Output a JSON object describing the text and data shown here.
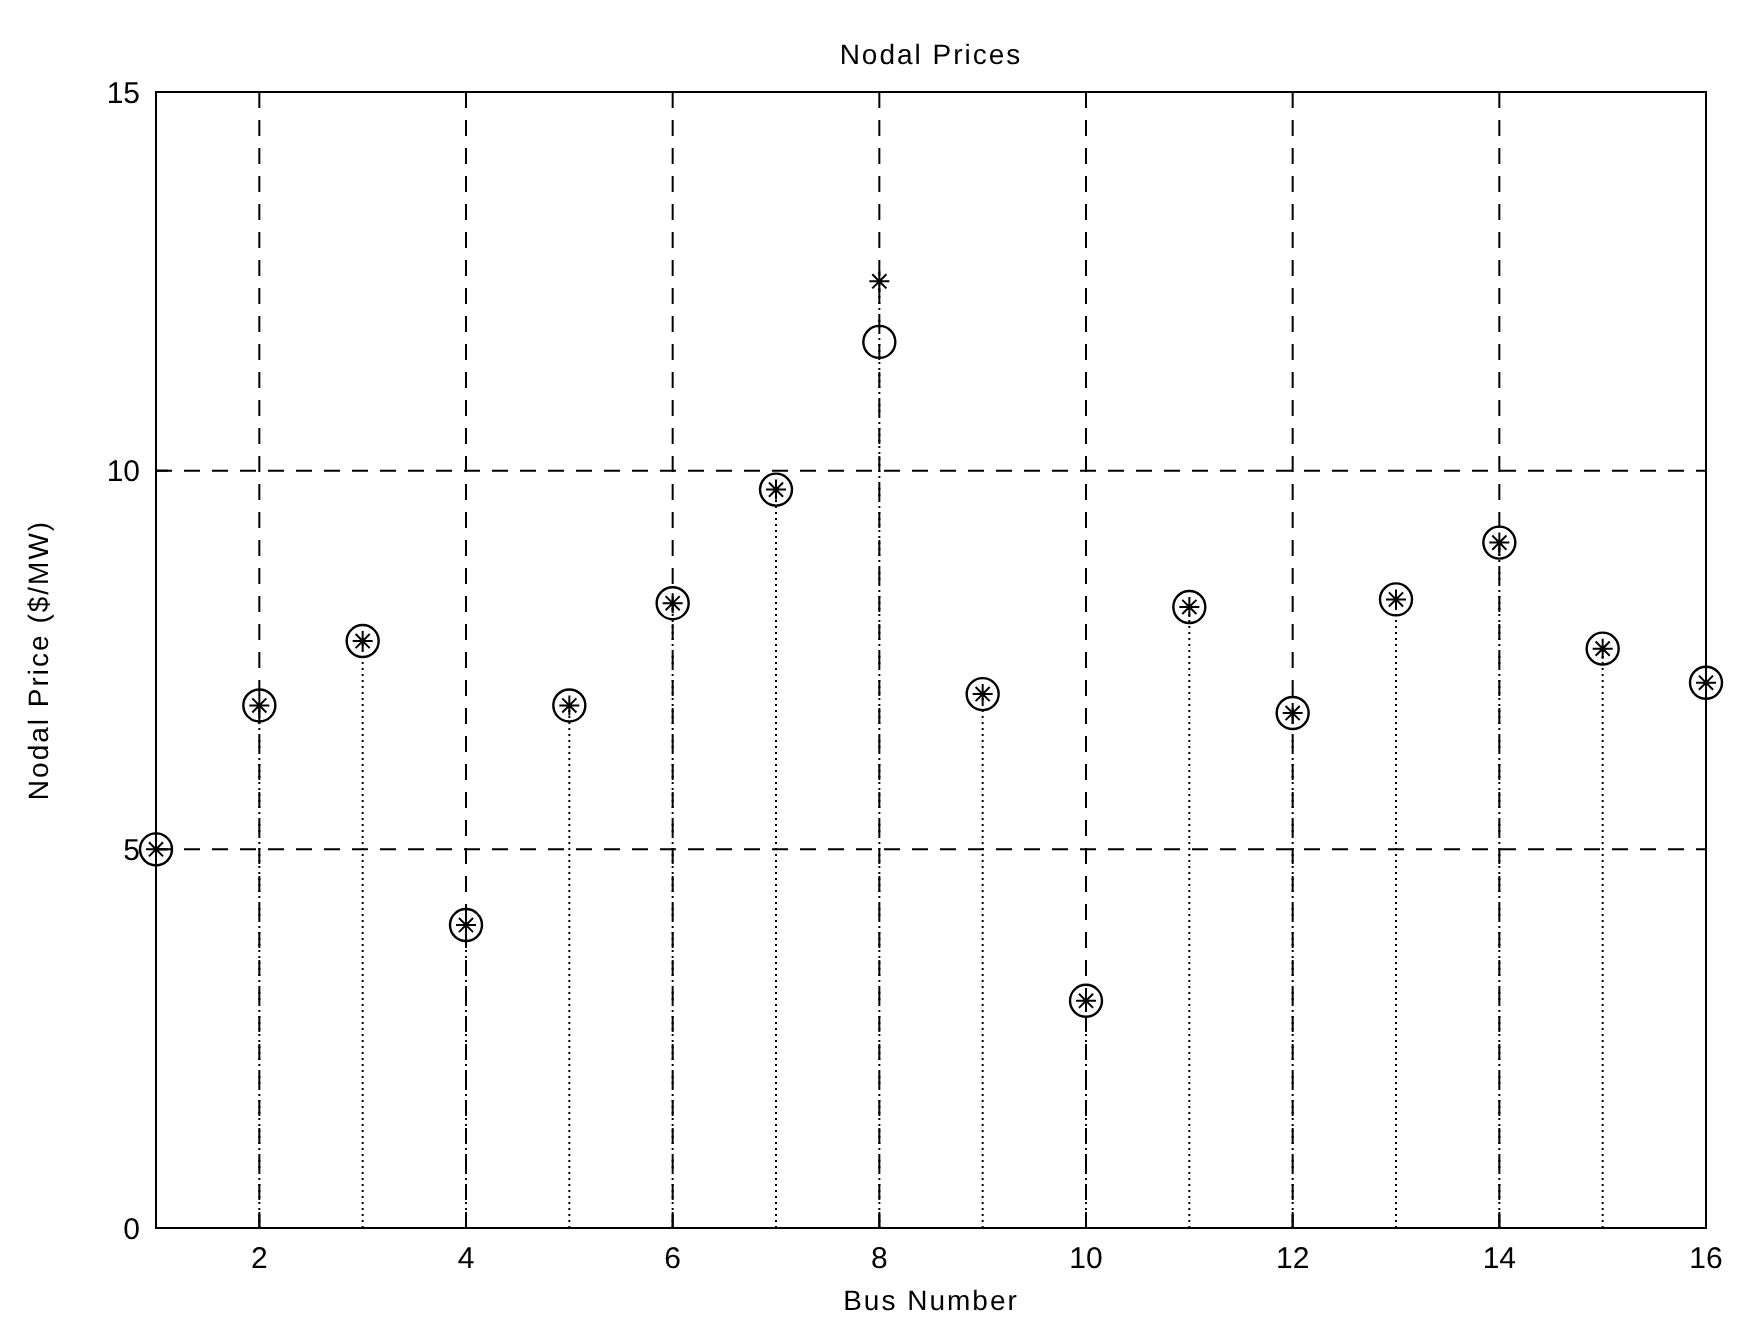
{
  "chart_data": {
    "type": "scatter",
    "title": "Nodal Prices",
    "xlabel": "Bus Number",
    "ylabel": "Nodal Price ($/MW)",
    "x": [
      1,
      2,
      3,
      4,
      5,
      6,
      7,
      8,
      9,
      10,
      11,
      12,
      13,
      14,
      15,
      16
    ],
    "series": [
      {
        "marker": "circle",
        "color": "#000000",
        "values": [
          5.0,
          6.9,
          7.75,
          4.0,
          6.9,
          8.25,
          9.75,
          11.7,
          7.05,
          3.0,
          8.2,
          6.8,
          8.3,
          9.05,
          7.65,
          7.2
        ]
      },
      {
        "type": "lollipop",
        "marker": "cross",
        "color": "#000000",
        "values": [
          5.0,
          6.9,
          7.75,
          4.0,
          6.9,
          8.25,
          9.75,
          12.5,
          7.05,
          3.0,
          8.2,
          6.8,
          8.3,
          9.05,
          7.65,
          7.2
        ]
      }
    ],
    "xlim": [
      1,
      16
    ],
    "xticks": [
      2,
      4,
      6,
      8,
      10,
      12,
      14,
      16
    ],
    "ylim": [
      0,
      15
    ],
    "yticks": [
      0,
      5,
      10,
      15
    ],
    "grid": true
  }
}
